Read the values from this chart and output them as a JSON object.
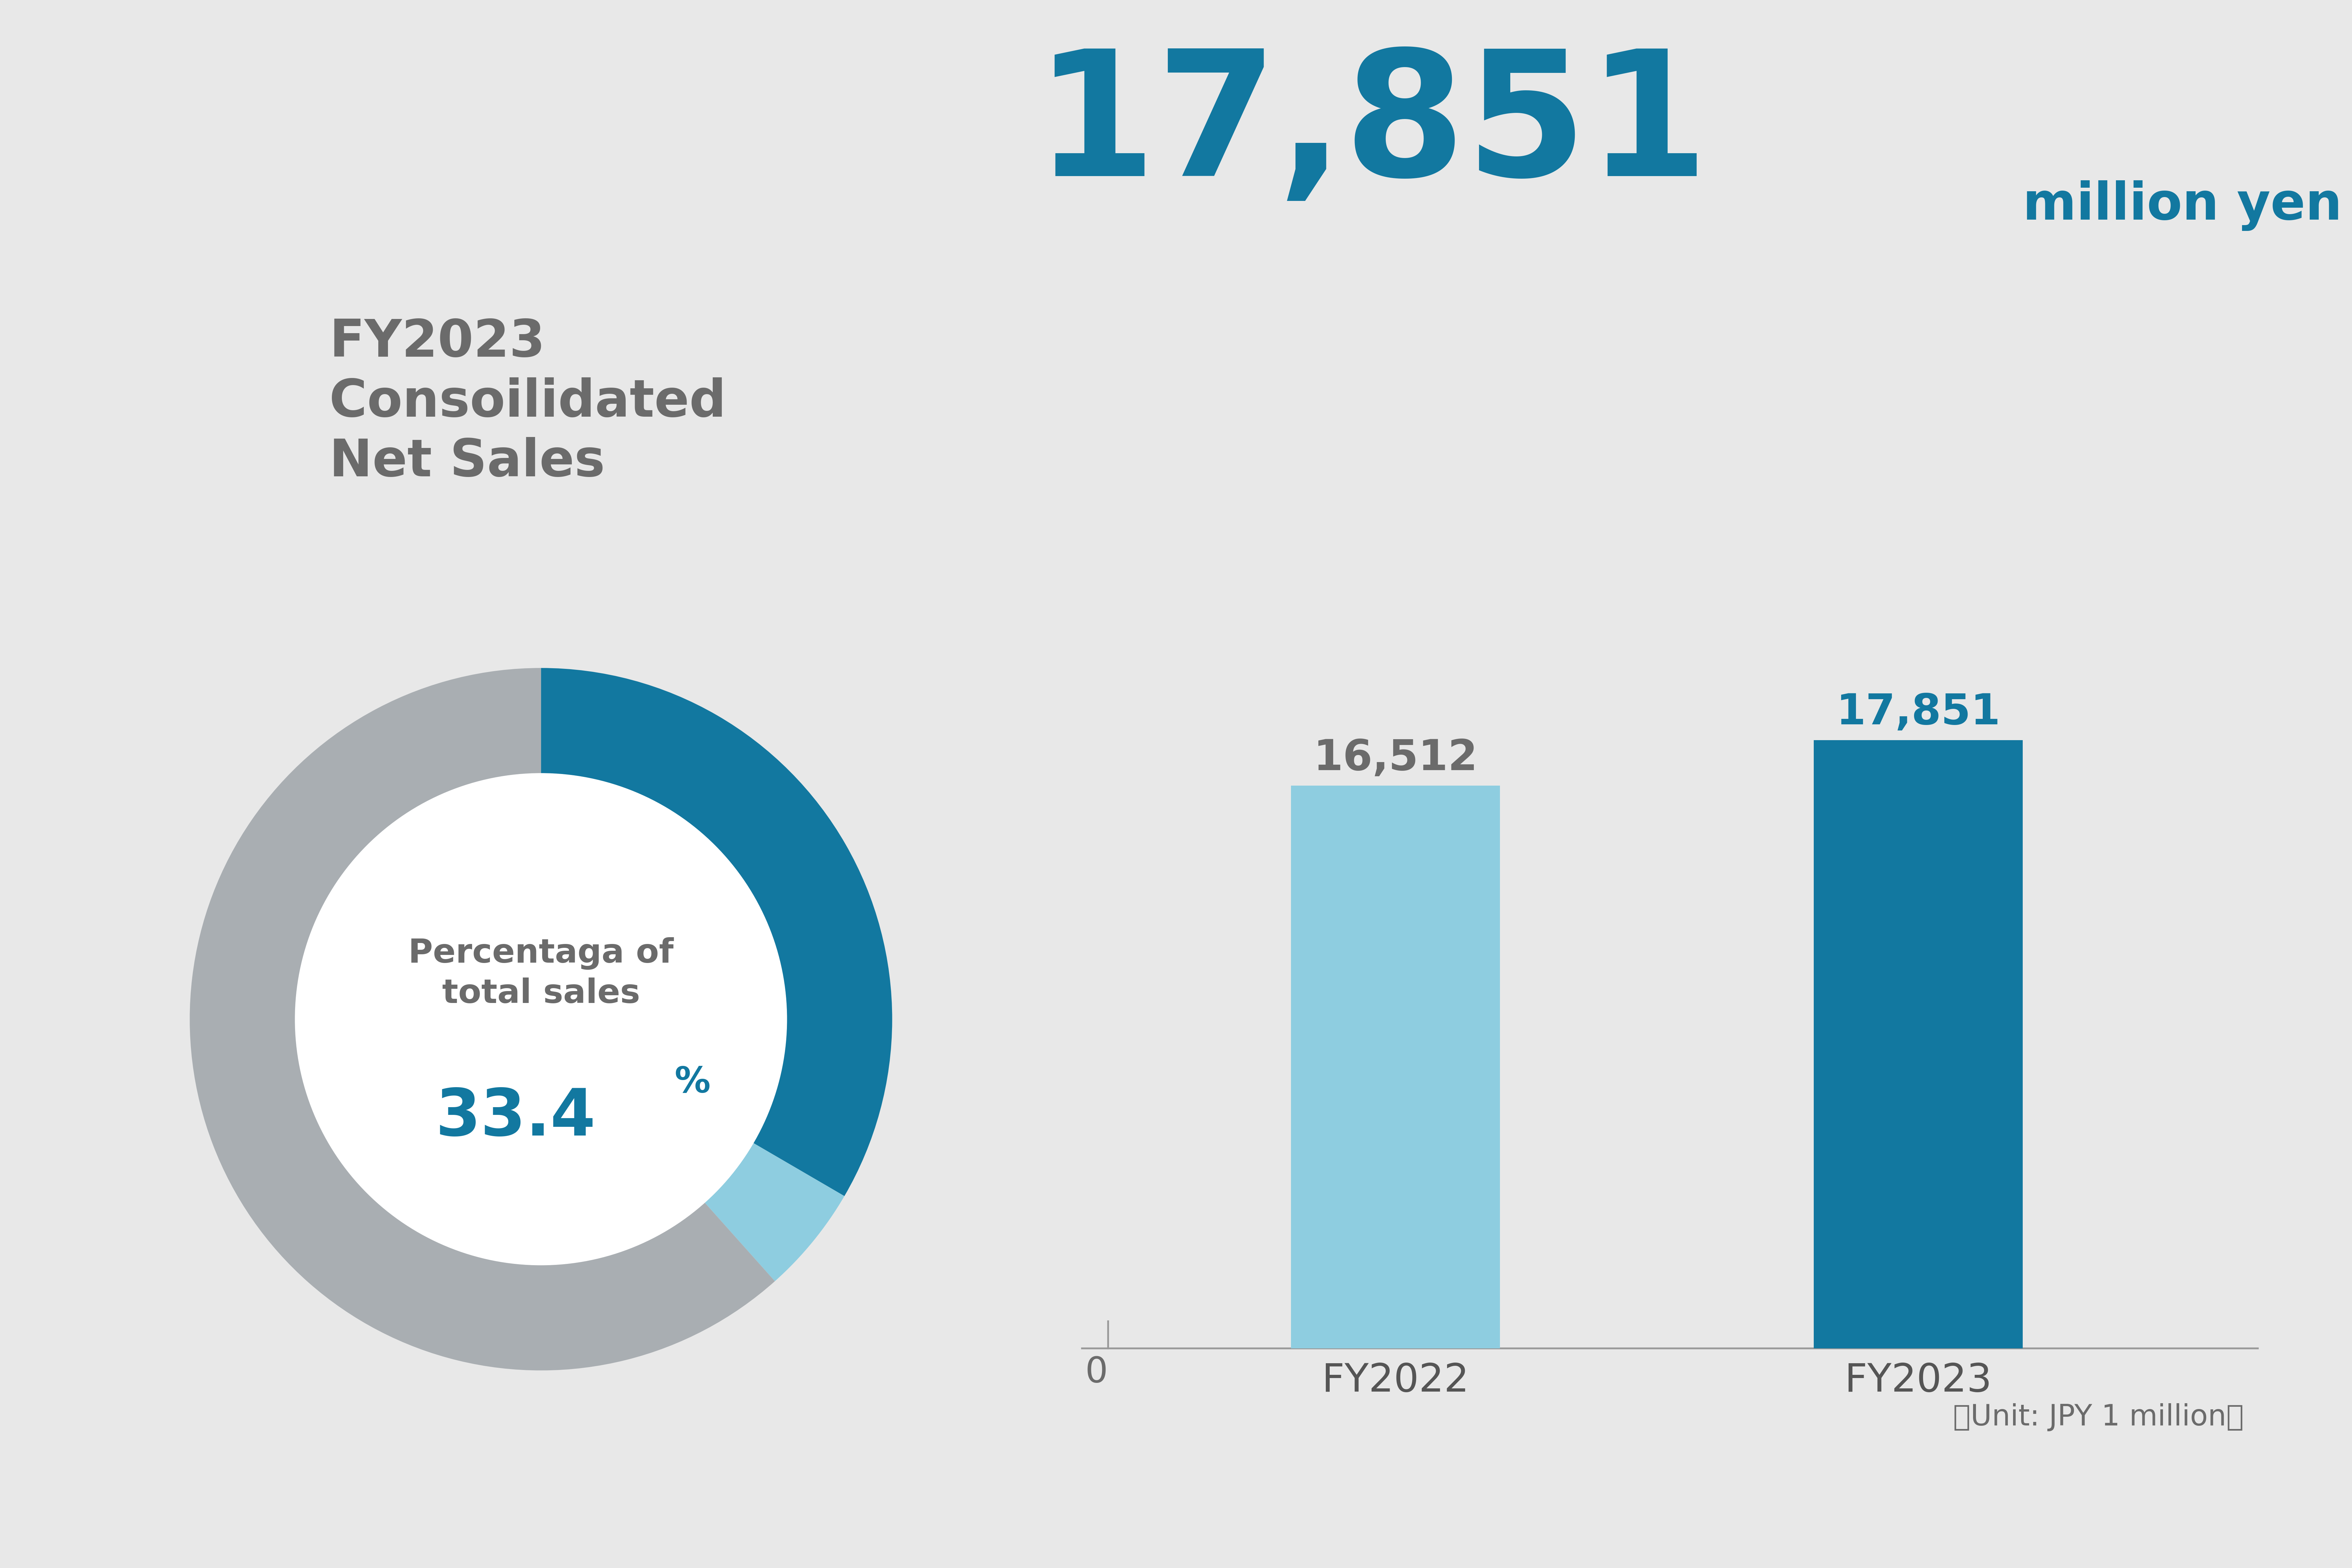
{
  "bg_color": "#e8e8e8",
  "title_label": "FY2023\nConsoilidated\nNet Sales",
  "title_label_color": "#6b6b6b",
  "big_number": "17,851",
  "big_number_color": "#1278a0",
  "million_yen": "million yen",
  "million_yen_color": "#1278a0",
  "donut_values": [
    33.4,
    5.0,
    61.6
  ],
  "donut_colors": [
    "#1278a0",
    "#8ecde0",
    "#a9aeb2"
  ],
  "donut_center_label1": "Percentaga of\ntotal sales",
  "donut_center_label1_color": "#6b6b6b",
  "donut_center_number": "33.4",
  "donut_center_number_color": "#1278a0",
  "donut_center_pct": "%",
  "donut_center_pct_color": "#1278a0",
  "bar_categories": [
    "FY2022",
    "FY2023"
  ],
  "bar_values": [
    16512,
    17851
  ],
  "bar_colors": [
    "#8ecde0",
    "#1278a0"
  ],
  "bar_value_labels": [
    "16,512",
    "17,851"
  ],
  "bar_value_colors": [
    "#6b6b6b",
    "#1278a0"
  ],
  "bar_zero_label": "0",
  "unit_label": "（Unit: JPY 1 million）",
  "unit_label_color": "#6b6b6b",
  "axis_color": "#999999"
}
